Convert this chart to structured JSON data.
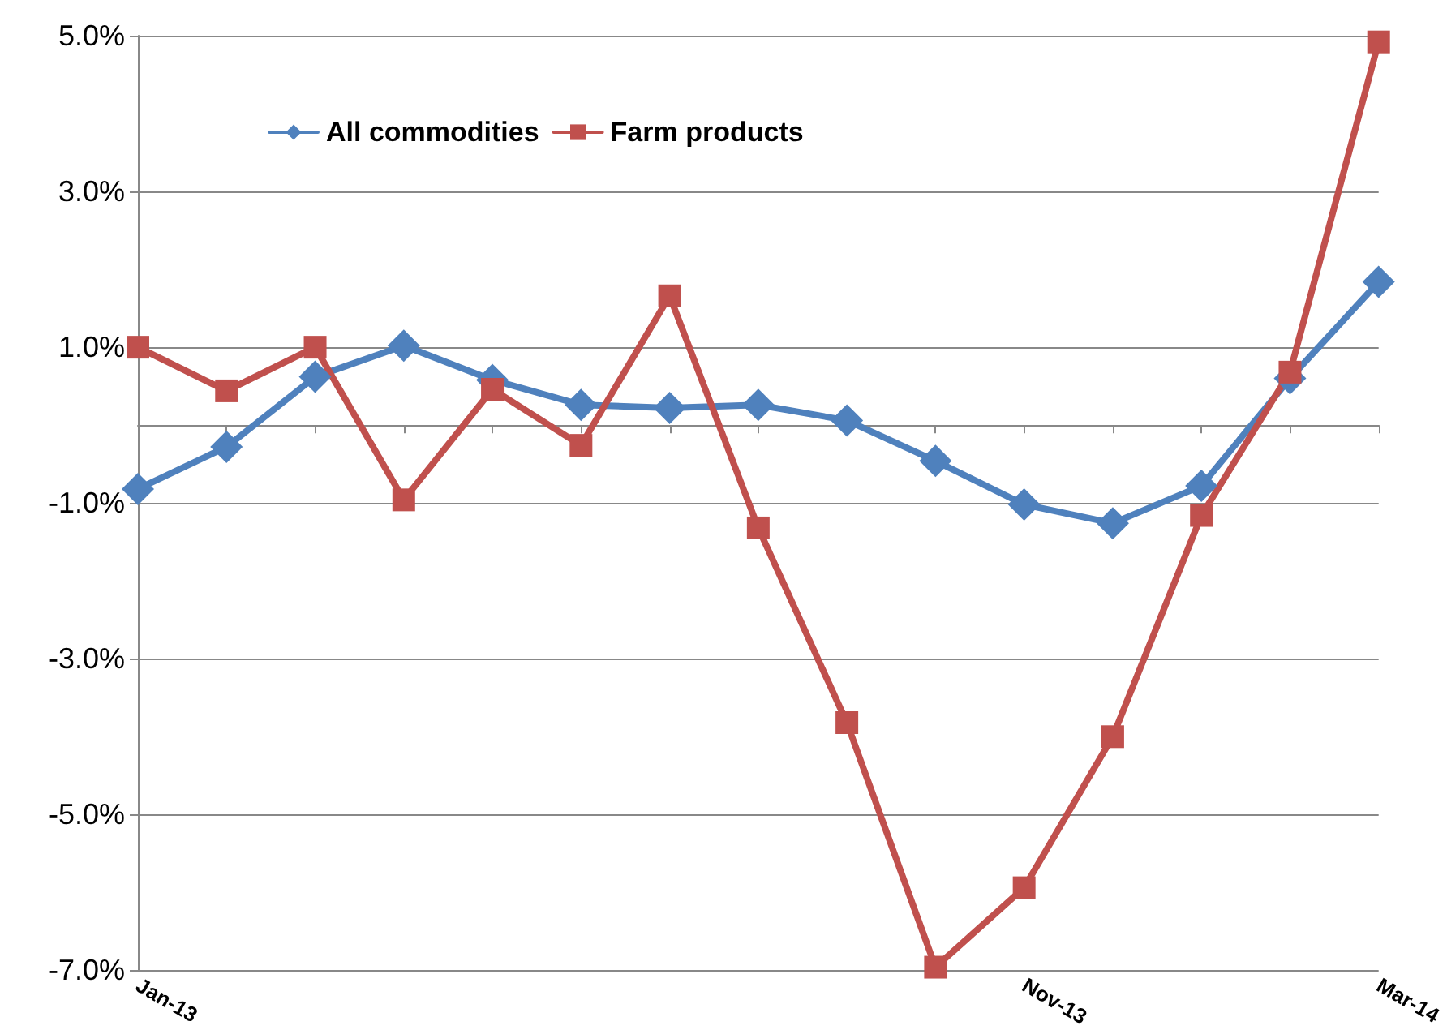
{
  "chart_data": {
    "type": "line",
    "categories": [
      "Jan-13",
      null,
      null,
      null,
      null,
      null,
      null,
      null,
      null,
      null,
      "Nov-13",
      null,
      null,
      null,
      "Mar-14"
    ],
    "series": [
      {
        "name": "All commodities",
        "color": "#4f81bd",
        "marker": "diamond",
        "values": [
          -0.82,
          -0.28,
          0.62,
          1.02,
          0.58,
          0.26,
          0.22,
          0.26,
          0.06,
          -0.46,
          -1.02,
          -1.26,
          -0.78,
          0.6,
          1.84
        ]
      },
      {
        "name": "Farm products",
        "color": "#c0504d",
        "marker": "square",
        "values": [
          1.0,
          0.44,
          1.0,
          -0.96,
          0.46,
          -0.26,
          1.66,
          -1.32,
          -3.82,
          -6.96,
          -5.94,
          -4.0,
          -1.16,
          0.68,
          4.92
        ]
      }
    ],
    "ylim": [
      -7,
      5
    ],
    "yticks": [
      {
        "value": -7,
        "label": "-7.0%"
      },
      {
        "value": -5,
        "label": "-5.0%"
      },
      {
        "value": -3,
        "label": "-3.0%"
      },
      {
        "value": -1,
        "label": "-1.0%"
      },
      {
        "value": 1,
        "label": "1.0%"
      },
      {
        "value": 3,
        "label": "3.0%"
      },
      {
        "value": 5,
        "label": "5.0%"
      }
    ],
    "grid": "y",
    "legend": "top left",
    "line_style": "solid"
  }
}
